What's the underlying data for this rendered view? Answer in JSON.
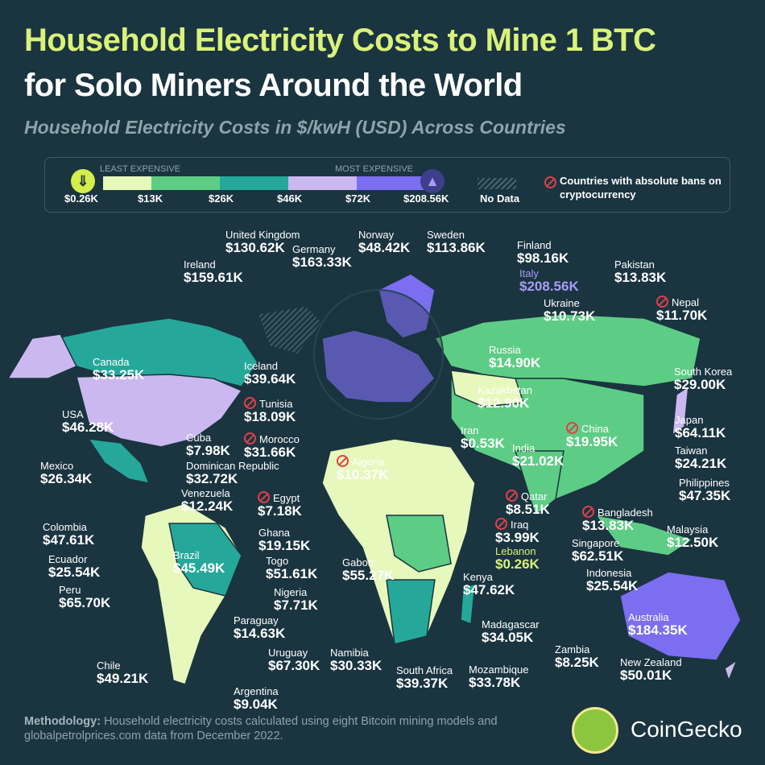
{
  "title_line1": "Household Electricity Costs to Mine 1 BTC",
  "title_line2": "for Solo Miners Around the World",
  "subtitle": "Household Electricity Costs in $/kwH (USD) Across Countries",
  "legend": {
    "least_label": "LEAST EXPENSIVE",
    "most_label": "MOST EXPENSIVE",
    "ticks": [
      "$0.26K",
      "$13K",
      "$26K",
      "$46K",
      "$72K",
      "$208.56K"
    ],
    "colors": [
      "#e6f8bb",
      "#5dcd85",
      "#25a89a",
      "#cbb8f0",
      "#7b6ef0"
    ],
    "no_data": "No Data",
    "ban_note": "Countries with absolute bans on cryptocurrency",
    "min_icon": "arrow-down-icon",
    "max_icon": "lighthouse-icon"
  },
  "countries": [
    {
      "name": "United Kingdom",
      "value": "$130.62K"
    },
    {
      "name": "Germany",
      "value": "$163.33K"
    },
    {
      "name": "Norway",
      "value": "$48.42K"
    },
    {
      "name": "Sweden",
      "value": "$113.86K"
    },
    {
      "name": "Finland",
      "value": "$98.16K"
    },
    {
      "name": "Ireland",
      "value": "$159.61K"
    },
    {
      "name": "Italy",
      "value": "$208.56K"
    },
    {
      "name": "Pakistan",
      "value": "$13.83K"
    },
    {
      "name": "Nepal",
      "value": "$11.70K",
      "ban": true
    },
    {
      "name": "Ukraine",
      "value": "$10.73K"
    },
    {
      "name": "Canada",
      "value": "$33.25K"
    },
    {
      "name": "Iceland",
      "value": "$39.64K"
    },
    {
      "name": "Russia",
      "value": "$14.90K"
    },
    {
      "name": "South Korea",
      "value": "$29.00K"
    },
    {
      "name": "Tunisia",
      "value": "$18.09K",
      "ban": true
    },
    {
      "name": "Kazakhstan",
      "value": "$12.90K"
    },
    {
      "name": "USA",
      "value": "$46.28K"
    },
    {
      "name": "Cuba",
      "value": "$7.98K"
    },
    {
      "name": "Morocco",
      "value": "$31.66K",
      "ban": true
    },
    {
      "name": "Japan",
      "value": "$64.11K"
    },
    {
      "name": "Iran",
      "value": "$0.53K"
    },
    {
      "name": "China",
      "value": "$19.95K",
      "ban": true
    },
    {
      "name": "Taiwan",
      "value": "$24.21K"
    },
    {
      "name": "Mexico",
      "value": "$26.34K"
    },
    {
      "name": "Dominican Republic",
      "value": "$32.72K"
    },
    {
      "name": "Algeria",
      "value": "$10.37K",
      "ban": true
    },
    {
      "name": "India",
      "value": "$21.02K"
    },
    {
      "name": "Philippines",
      "value": "$47.35K"
    },
    {
      "name": "Venezuela",
      "value": "$12.24K"
    },
    {
      "name": "Egypt",
      "value": "$7.18K",
      "ban": true
    },
    {
      "name": "Qatar",
      "value": "$8.51K",
      "ban": true
    },
    {
      "name": "Colombia",
      "value": "$47.61K"
    },
    {
      "name": "Bangladesh",
      "value": "$13.83K",
      "ban": true
    },
    {
      "name": "Iraq",
      "value": "$3.99K",
      "ban": true
    },
    {
      "name": "Malaysia",
      "value": "$12.50K"
    },
    {
      "name": "Ghana",
      "value": "$19.15K"
    },
    {
      "name": "Lebanon",
      "value": "$0.26K"
    },
    {
      "name": "Ecuador",
      "value": "$25.54K"
    },
    {
      "name": "Brazil",
      "value": "$45.49K"
    },
    {
      "name": "Togo",
      "value": "$51.61K"
    },
    {
      "name": "Gabon",
      "value": "$55.27K"
    },
    {
      "name": "Singapore",
      "value": "$62.51K"
    },
    {
      "name": "Indonesia",
      "value": "$25.54K"
    },
    {
      "name": "Peru",
      "value": "$65.70K"
    },
    {
      "name": "Kenya",
      "value": "$47.62K"
    },
    {
      "name": "Nigeria",
      "value": "$7.71K"
    },
    {
      "name": "Paraguay",
      "value": "$14.63K"
    },
    {
      "name": "Madagascar",
      "value": "$34.05K"
    },
    {
      "name": "Australia",
      "value": "$184.35K"
    },
    {
      "name": "Zambia",
      "value": "$8.25K"
    },
    {
      "name": "Uruguay",
      "value": "$67.30K"
    },
    {
      "name": "Namibia",
      "value": "$30.33K"
    },
    {
      "name": "Chile",
      "value": "$49.21K"
    },
    {
      "name": "New Zealand",
      "value": "$50.01K"
    },
    {
      "name": "South Africa",
      "value": "$39.37K"
    },
    {
      "name": "Mozambique",
      "value": "$33.78K"
    },
    {
      "name": "Argentina",
      "value": "$9.04K"
    }
  ],
  "footer": {
    "methodology_label": "Methodology:",
    "methodology_text": " Household electricity costs calculated using eight Bitcoin mining models and globalpetrolprices.com data from December 2022."
  },
  "brand": "CoinGecko"
}
